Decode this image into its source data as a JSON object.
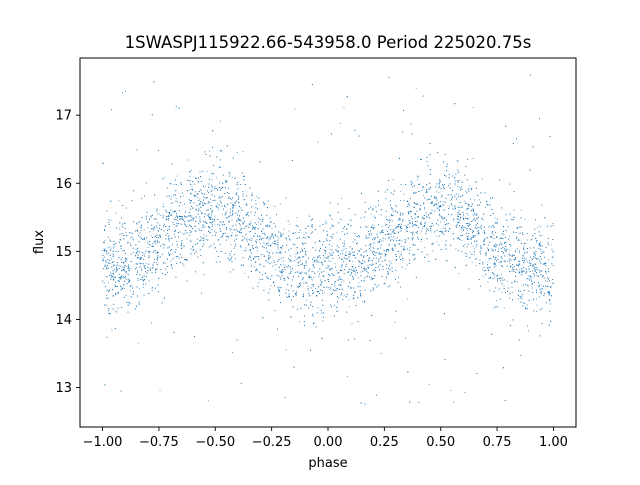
{
  "chart_data": {
    "type": "scatter",
    "title": "1SWASPJ115922.66-543958.0 Period 225020.75s",
    "xlabel": "phase",
    "ylabel": "flux",
    "xlim": [
      -1.1,
      1.1
    ],
    "ylim": [
      12.42,
      17.84
    ],
    "xticks": [
      -1.0,
      -0.75,
      -0.5,
      -0.25,
      0.0,
      0.25,
      0.5,
      0.75,
      1.0
    ],
    "xtick_labels": [
      "−1.00",
      "−0.75",
      "−0.50",
      "−0.25",
      "0.00",
      "0.25",
      "0.50",
      "0.75",
      "1.00"
    ],
    "yticks": [
      13,
      14,
      15,
      16,
      17
    ],
    "ytick_labels": [
      "13",
      "14",
      "15",
      "16",
      "17"
    ],
    "grid": false,
    "legend": "none",
    "marker_color": "#1f77b4",
    "phase_range": [
      -1.0,
      1.0
    ],
    "curve_phase": [
      0.0,
      0.05,
      0.1,
      0.15,
      0.2,
      0.25,
      0.3,
      0.35,
      0.4,
      0.45,
      0.5,
      0.55,
      0.6,
      0.65,
      0.7,
      0.75,
      0.8,
      0.85,
      0.9,
      0.95
    ],
    "curve_flux": [
      14.7,
      14.75,
      14.8,
      14.9,
      15.0,
      15.15,
      15.3,
      15.45,
      15.55,
      15.6,
      15.62,
      15.6,
      15.5,
      15.35,
      15.15,
      14.95,
      14.85,
      14.8,
      14.75,
      14.72
    ],
    "scatter_sigma": 0.35,
    "outlier_range": [
      12.7,
      17.6
    ]
  }
}
